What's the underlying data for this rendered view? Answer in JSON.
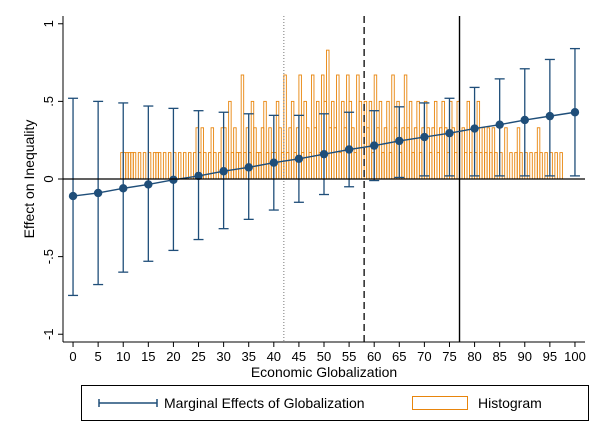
{
  "chart_data": {
    "type": "line",
    "title": "",
    "xlabel": "Economic Globalization",
    "ylabel": "Effect on Inequality",
    "xlim": [
      0,
      100
    ],
    "ylim": [
      -1,
      1
    ],
    "x_ticks": [
      "0",
      "5",
      "10",
      "15",
      "20",
      "25",
      "30",
      "35",
      "40",
      "45",
      "50",
      "55",
      "60",
      "65",
      "70",
      "75",
      "80",
      "85",
      "90",
      "95",
      "100"
    ],
    "y_ticks": [
      {
        "value": -1,
        "label": "-1"
      },
      {
        "value": -0.5,
        "label": "-.5"
      },
      {
        "value": 0,
        "label": "0"
      },
      {
        "value": 0.5,
        "label": ".5"
      },
      {
        "value": 1,
        "label": "1"
      }
    ],
    "reference_lines": [
      {
        "x": 42,
        "style": "dotted"
      },
      {
        "x": 58,
        "style": "dashed"
      },
      {
        "x": 77,
        "style": "solid"
      }
    ],
    "series": [
      {
        "name": "Marginal Effects of Globalization",
        "x": [
          0,
          5,
          10,
          15,
          20,
          25,
          30,
          35,
          40,
          45,
          50,
          55,
          60,
          65,
          70,
          75,
          80,
          85,
          90,
          95,
          100
        ],
        "y": [
          -0.11,
          -0.09,
          -0.06,
          -0.035,
          -0.005,
          0.02,
          0.05,
          0.075,
          0.105,
          0.13,
          0.16,
          0.19,
          0.215,
          0.245,
          0.27,
          0.295,
          0.325,
          0.35,
          0.38,
          0.405,
          0.43
        ],
        "ci_low": [
          -0.75,
          -0.68,
          -0.6,
          -0.53,
          -0.46,
          -0.39,
          -0.32,
          -0.26,
          -0.2,
          -0.15,
          -0.1,
          -0.05,
          -0.01,
          0.01,
          0.02,
          0.02,
          0.02,
          0.02,
          0.02,
          0.02,
          0.02
        ],
        "ci_high": [
          0.52,
          0.5,
          0.49,
          0.47,
          0.455,
          0.44,
          0.43,
          0.42,
          0.41,
          0.41,
          0.42,
          0.43,
          0.44,
          0.465,
          0.49,
          0.52,
          0.59,
          0.645,
          0.71,
          0.77,
          0.84
        ]
      },
      {
        "name": "Histogram",
        "type": "histogram",
        "bin_width": 0.5,
        "bins": [
          [
            9.5,
            0.17
          ],
          [
            10,
            0.17
          ],
          [
            10.5,
            0.17
          ],
          [
            11,
            0.17
          ],
          [
            11.5,
            0.17
          ],
          [
            12,
            0.17
          ],
          [
            13,
            0.17
          ],
          [
            14,
            0.17
          ],
          [
            15,
            0.17
          ],
          [
            16,
            0.17
          ],
          [
            16.5,
            0.17
          ],
          [
            17,
            0.17
          ],
          [
            18,
            0.17
          ],
          [
            19,
            0.17
          ],
          [
            20,
            0.17
          ],
          [
            21,
            0.17
          ],
          [
            22,
            0.17
          ],
          [
            23,
            0.17
          ],
          [
            24,
            0.17
          ],
          [
            24.5,
            0.33
          ],
          [
            25,
            0.17
          ],
          [
            25.5,
            0.33
          ],
          [
            26,
            0.17
          ],
          [
            27,
            0.17
          ],
          [
            27.5,
            0.33
          ],
          [
            28,
            0.17
          ],
          [
            29,
            0.17
          ],
          [
            29.5,
            0.33
          ],
          [
            30,
            0.33
          ],
          [
            30.5,
            0.17
          ],
          [
            31,
            0.5
          ],
          [
            31.5,
            0.17
          ],
          [
            32,
            0.33
          ],
          [
            32.5,
            0.17
          ],
          [
            33,
            0.17
          ],
          [
            33.5,
            0.67
          ],
          [
            34,
            0.17
          ],
          [
            34.5,
            0.33
          ],
          [
            35,
            0.17
          ],
          [
            35.5,
            0.5
          ],
          [
            36,
            0.33
          ],
          [
            36.5,
            0.17
          ],
          [
            37,
            0.17
          ],
          [
            37.5,
            0.33
          ],
          [
            38,
            0.5
          ],
          [
            38.5,
            0.17
          ],
          [
            39,
            0.33
          ],
          [
            39.5,
            0.17
          ],
          [
            40,
            0.17
          ],
          [
            40.5,
            0.5
          ],
          [
            41,
            0.33
          ],
          [
            41.5,
            0.17
          ],
          [
            42,
            0.67
          ],
          [
            42.5,
            0.17
          ],
          [
            43,
            0.33
          ],
          [
            43.5,
            0.5
          ],
          [
            44,
            0.17
          ],
          [
            44.5,
            0.33
          ],
          [
            45,
            0.67
          ],
          [
            45.5,
            0.17
          ],
          [
            46,
            0.5
          ],
          [
            46.5,
            0.33
          ],
          [
            47,
            0.17
          ],
          [
            47.5,
            0.67
          ],
          [
            48,
            0.33
          ],
          [
            48.5,
            0.5
          ],
          [
            49,
            0.17
          ],
          [
            49.5,
            0.67
          ],
          [
            50,
            0.5
          ],
          [
            50.5,
            0.83
          ],
          [
            51,
            0.33
          ],
          [
            51.5,
            0.5
          ],
          [
            52,
            0.33
          ],
          [
            52.5,
            0.67
          ],
          [
            53,
            0.17
          ],
          [
            53.5,
            0.5
          ],
          [
            54,
            0.33
          ],
          [
            54.5,
            0.67
          ],
          [
            55,
            0.5
          ],
          [
            55.5,
            0.33
          ],
          [
            56,
            0.17
          ],
          [
            56.5,
            0.67
          ],
          [
            57,
            0.5
          ],
          [
            58,
            0.5
          ],
          [
            58.5,
            0.33
          ],
          [
            59,
            0.5
          ],
          [
            59.5,
            0.17
          ],
          [
            60,
            0.67
          ],
          [
            60.5,
            0.33
          ],
          [
            61,
            0.5
          ],
          [
            61.5,
            0.17
          ],
          [
            62,
            0.33
          ],
          [
            62.5,
            0.5
          ],
          [
            63,
            0.17
          ],
          [
            63.5,
            0.67
          ],
          [
            64,
            0.33
          ],
          [
            64.5,
            0.5
          ],
          [
            65,
            0.17
          ],
          [
            65.5,
            0.33
          ],
          [
            66,
            0.67
          ],
          [
            66.5,
            0.33
          ],
          [
            67,
            0.5
          ],
          [
            67.5,
            0.17
          ],
          [
            68,
            0.33
          ],
          [
            68.5,
            0.5
          ],
          [
            69,
            0.17
          ],
          [
            69.5,
            0.33
          ],
          [
            70,
            0.5
          ],
          [
            70.5,
            0.33
          ],
          [
            71,
            0.17
          ],
          [
            71.5,
            0.33
          ],
          [
            72,
            0.5
          ],
          [
            72.5,
            0.17
          ],
          [
            73,
            0.33
          ],
          [
            73.5,
            0.5
          ],
          [
            74,
            0.33
          ],
          [
            74.5,
            0.17
          ],
          [
            75,
            0.5
          ],
          [
            75.5,
            0.33
          ],
          [
            76,
            0.17
          ],
          [
            76.5,
            0.5
          ],
          [
            77.5,
            0.33
          ],
          [
            78,
            0.17
          ],
          [
            78.5,
            0.5
          ],
          [
            79,
            0.17
          ],
          [
            79.5,
            0.33
          ],
          [
            80,
            0.17
          ],
          [
            80.5,
            0.5
          ],
          [
            81,
            0.17
          ],
          [
            81.5,
            0.33
          ],
          [
            82,
            0.17
          ],
          [
            82.5,
            0.33
          ],
          [
            83,
            0.17
          ],
          [
            83.5,
            0.33
          ],
          [
            84,
            0.17
          ],
          [
            85,
            0.17
          ],
          [
            86,
            0.33
          ],
          [
            87,
            0.17
          ],
          [
            88,
            0.17
          ],
          [
            88.5,
            0.33
          ],
          [
            89,
            0.17
          ],
          [
            90,
            0.17
          ],
          [
            91,
            0.17
          ],
          [
            92,
            0.17
          ],
          [
            92.5,
            0.33
          ],
          [
            93,
            0.17
          ],
          [
            94,
            0.17
          ],
          [
            95,
            0.17
          ],
          [
            96,
            0.17
          ],
          [
            97,
            0.17
          ]
        ]
      }
    ],
    "legend": {
      "position": "bottom",
      "entries": [
        "Marginal Effects of Globalization",
        "Histogram"
      ]
    },
    "colors": {
      "line": "#1f4e79",
      "marker": "#1f4e79",
      "histogram": "#e8850c",
      "axis": "#000000"
    }
  }
}
